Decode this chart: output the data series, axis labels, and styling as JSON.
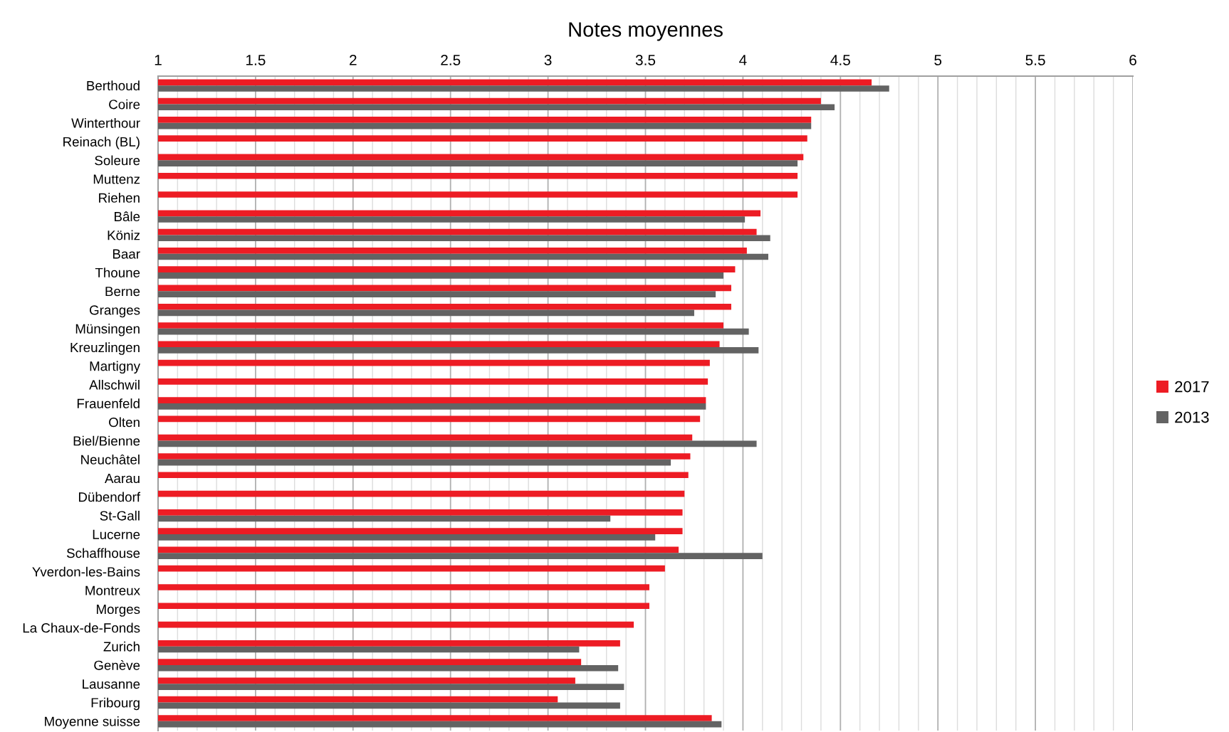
{
  "chart_data": {
    "type": "bar",
    "orientation": "horizontal",
    "title": "Notes moyennes",
    "categories": [
      "Berthoud",
      "Coire",
      "Winterthour",
      "Reinach (BL)",
      "Soleure",
      "Muttenz",
      "Riehen",
      "Bâle",
      "Köniz",
      "Baar",
      "Thoune",
      "Berne",
      "Granges",
      "Münsingen",
      "Kreuzlingen",
      "Martigny",
      "Allschwil",
      "Frauenfeld",
      "Olten",
      "Biel/Bienne",
      "Neuchâtel",
      "Aarau",
      "Dübendorf",
      "St-Gall",
      "Lucerne",
      "Schaffhouse",
      "Yverdon-les-Bains",
      "Montreux",
      "Morges",
      "La Chaux-de-Fonds",
      "Zurich",
      "Genève",
      "Lausanne",
      "Fribourg",
      "Moyenne suisse"
    ],
    "series": [
      {
        "name": "2017",
        "color": "#ed1c24",
        "values": [
          4.66,
          4.4,
          4.35,
          4.33,
          4.31,
          4.28,
          4.28,
          4.09,
          4.07,
          4.02,
          3.96,
          3.94,
          3.94,
          3.9,
          3.88,
          3.83,
          3.82,
          3.81,
          3.78,
          3.74,
          3.73,
          3.72,
          3.7,
          3.69,
          3.69,
          3.67,
          3.6,
          3.52,
          3.52,
          3.44,
          3.37,
          3.17,
          3.14,
          3.05,
          3.84
        ]
      },
      {
        "name": "2013",
        "color": "#636363",
        "values": [
          4.75,
          4.47,
          4.35,
          null,
          4.28,
          null,
          null,
          4.01,
          4.14,
          4.13,
          3.9,
          3.86,
          3.75,
          4.03,
          4.08,
          null,
          null,
          3.81,
          null,
          4.07,
          3.63,
          null,
          null,
          3.32,
          3.55,
          4.1,
          null,
          null,
          null,
          null,
          3.16,
          3.36,
          3.39,
          3.37,
          3.89
        ]
      }
    ],
    "xlim": [
      1,
      6
    ],
    "xticks": [
      1,
      1.5,
      2,
      2.5,
      3,
      3.5,
      4,
      4.5,
      5,
      5.5,
      6
    ],
    "grid": "x",
    "legend": "right"
  }
}
